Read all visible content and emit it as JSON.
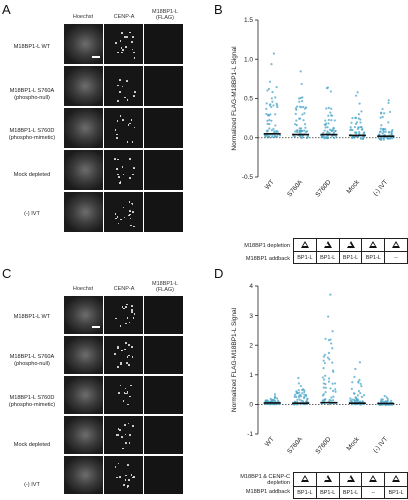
{
  "panels": {
    "A": {
      "label": "A"
    },
    "B": {
      "label": "B"
    },
    "C": {
      "label": "C"
    },
    "D": {
      "label": "D"
    }
  },
  "top_images": {
    "columns": [
      "Hoechst",
      "CENP-A",
      "M18BP1-L\n(FLAG)"
    ],
    "rows": [
      "M18BP1-L WT",
      "M18BP1-L S760A\n(phospho-null)",
      "M18BP1-L S760D\n(phospho-mimetic)",
      "Mock depleted",
      "(-) IVT"
    ]
  },
  "bottom_images": {
    "columns": [
      "Hoechst",
      "CENP-A",
      "M18BP1-L\n(FLAG)"
    ],
    "rows": [
      "M18BP1-L WT",
      "M18BP1-L S760A\n(phospho-null)",
      "M18BP1-L S760D\n(phospho-mimetic)",
      "Mock depleted",
      "(-) IVT"
    ]
  },
  "chart_data": [
    {
      "type": "scatter",
      "panel": "B",
      "ylabel": "Normalized FLAG-M18BP1-L Signal",
      "categories": [
        "WT",
        "S760A",
        "S760D",
        "Mock",
        "(-) IVT"
      ],
      "yticks": [
        "-0.5",
        "0.0",
        "0.5",
        "1.0",
        "1.5"
      ],
      "ylim": [
        -0.5,
        1.5
      ],
      "medians": [
        0.05,
        0.04,
        0.04,
        0.03,
        0.02
      ],
      "max_values": [
        1.1,
        0.88,
        0.7,
        0.62,
        0.55
      ],
      "color": "#4aa6c8",
      "table": {
        "rows": [
          {
            "label": "M18BP1 depletion",
            "cells": [
              "△",
              "△",
              "△",
              "△",
              "△"
            ]
          },
          {
            "label": "M18BP1 addback",
            "cells": [
              "BP1-L",
              "BP1-L",
              "BP1-L",
              "BP1-L",
              "--"
            ]
          }
        ]
      }
    },
    {
      "type": "scatter",
      "panel": "D",
      "ylabel": "Normalized FLAG-M18BP1-L Signal",
      "categories": [
        "WT",
        "S760A",
        "S760D",
        "Mock",
        "(-) IVT"
      ],
      "yticks": [
        "-1",
        "0",
        "1",
        "2",
        "3",
        "4"
      ],
      "ylim": [
        -1,
        4
      ],
      "medians": [
        0.05,
        0.04,
        0.06,
        0.04,
        0.03
      ],
      "max_values": [
        0.4,
        0.9,
        3.8,
        1.5,
        0.3
      ],
      "color": "#4aa6c8",
      "table": {
        "rows": [
          {
            "label": "M18BP1 & CENP-C\ndepletion",
            "cells": [
              "△",
              "△",
              "△",
              "△",
              "△"
            ]
          },
          {
            "label": "M18BP1 addback",
            "cells": [
              "BP1-L",
              "BP1-L",
              "BP1-L",
              "--",
              "BP1-L"
            ]
          }
        ]
      }
    }
  ]
}
